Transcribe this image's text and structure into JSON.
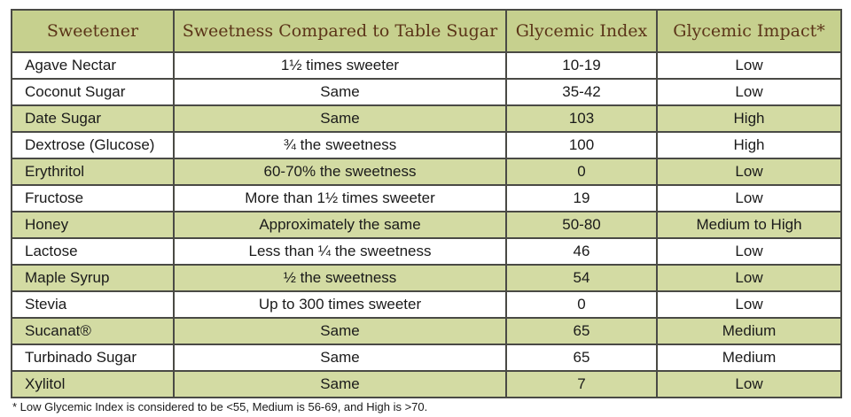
{
  "table": {
    "headers": [
      "Sweetener",
      "Sweetness Compared to Table Sugar",
      "Glycemic Index",
      "Glycemic Impact*"
    ],
    "rows": [
      [
        "Agave Nectar",
        "1½ times sweeter",
        "10-19",
        "Low"
      ],
      [
        "Coconut Sugar",
        "Same",
        "35-42",
        "Low"
      ],
      [
        "Date Sugar",
        "Same",
        "103",
        "High"
      ],
      [
        "Dextrose (Glucose)",
        "¾ the sweetness",
        "100",
        "High"
      ],
      [
        "Erythritol",
        "60-70% the sweetness",
        "0",
        "Low"
      ],
      [
        "Fructose",
        "More than 1½ times sweeter",
        "19",
        "Low"
      ],
      [
        "Honey",
        "Approximately the same",
        "50-80",
        "Medium to High"
      ],
      [
        "Lactose",
        "Less than ¼ the sweetness",
        "46",
        "Low"
      ],
      [
        "Maple Syrup",
        "½ the sweetness",
        "54",
        "Low"
      ],
      [
        "Stevia",
        "Up to 300 times sweeter",
        "0",
        "Low"
      ],
      [
        "Sucanat®",
        "Same",
        "65",
        "Medium"
      ],
      [
        "Turbinado Sugar",
        "Same",
        "65",
        "Medium"
      ],
      [
        "Xylitol",
        "Same",
        "7",
        "Low"
      ]
    ]
  },
  "footnote": "* Low Glycemic Index is considered to be <55, Medium is 56-69, and High is >70."
}
